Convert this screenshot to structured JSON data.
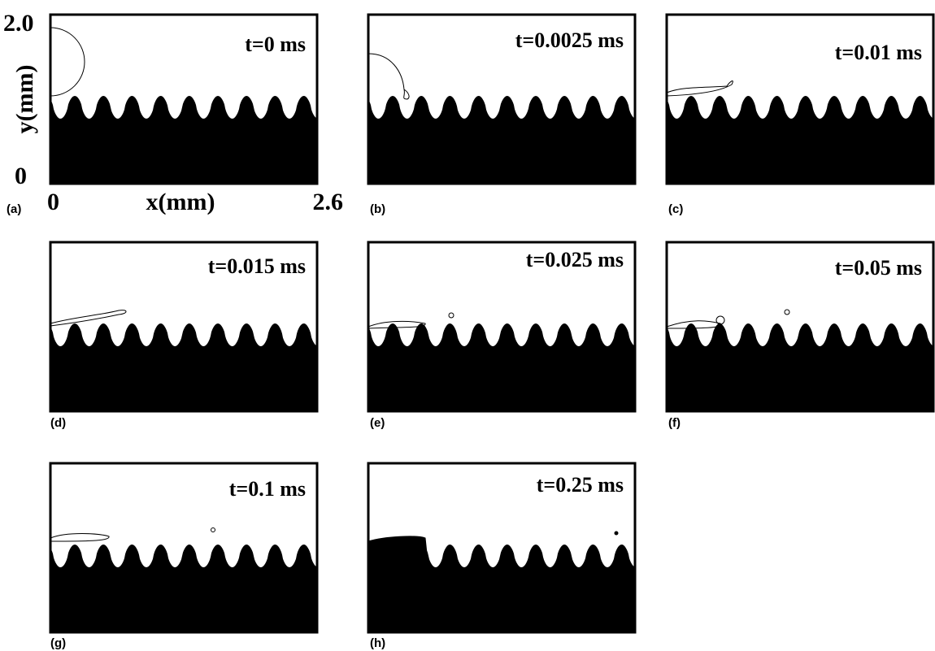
{
  "axes": {
    "y_top": "2.0",
    "y_label": "y(mm)",
    "y_bottom": "0",
    "x_left": "0",
    "x_label": "x(mm)",
    "x_right": "2.6"
  },
  "panels": [
    {
      "label": "(a)",
      "time": "t=0 ms"
    },
    {
      "label": "(b)",
      "time": "t=0.0025 ms"
    },
    {
      "label": "(c)",
      "time": "t=0.01 ms"
    },
    {
      "label": "(d)",
      "time": "t=0.015 ms"
    },
    {
      "label": "(e)",
      "time": "t=0.025 ms"
    },
    {
      "label": "(f)",
      "time": "t=0.05 ms"
    },
    {
      "label": "(g)",
      "time": "t=0.1 ms"
    },
    {
      "label": "(h)",
      "time": "t=0.25 ms"
    }
  ]
}
